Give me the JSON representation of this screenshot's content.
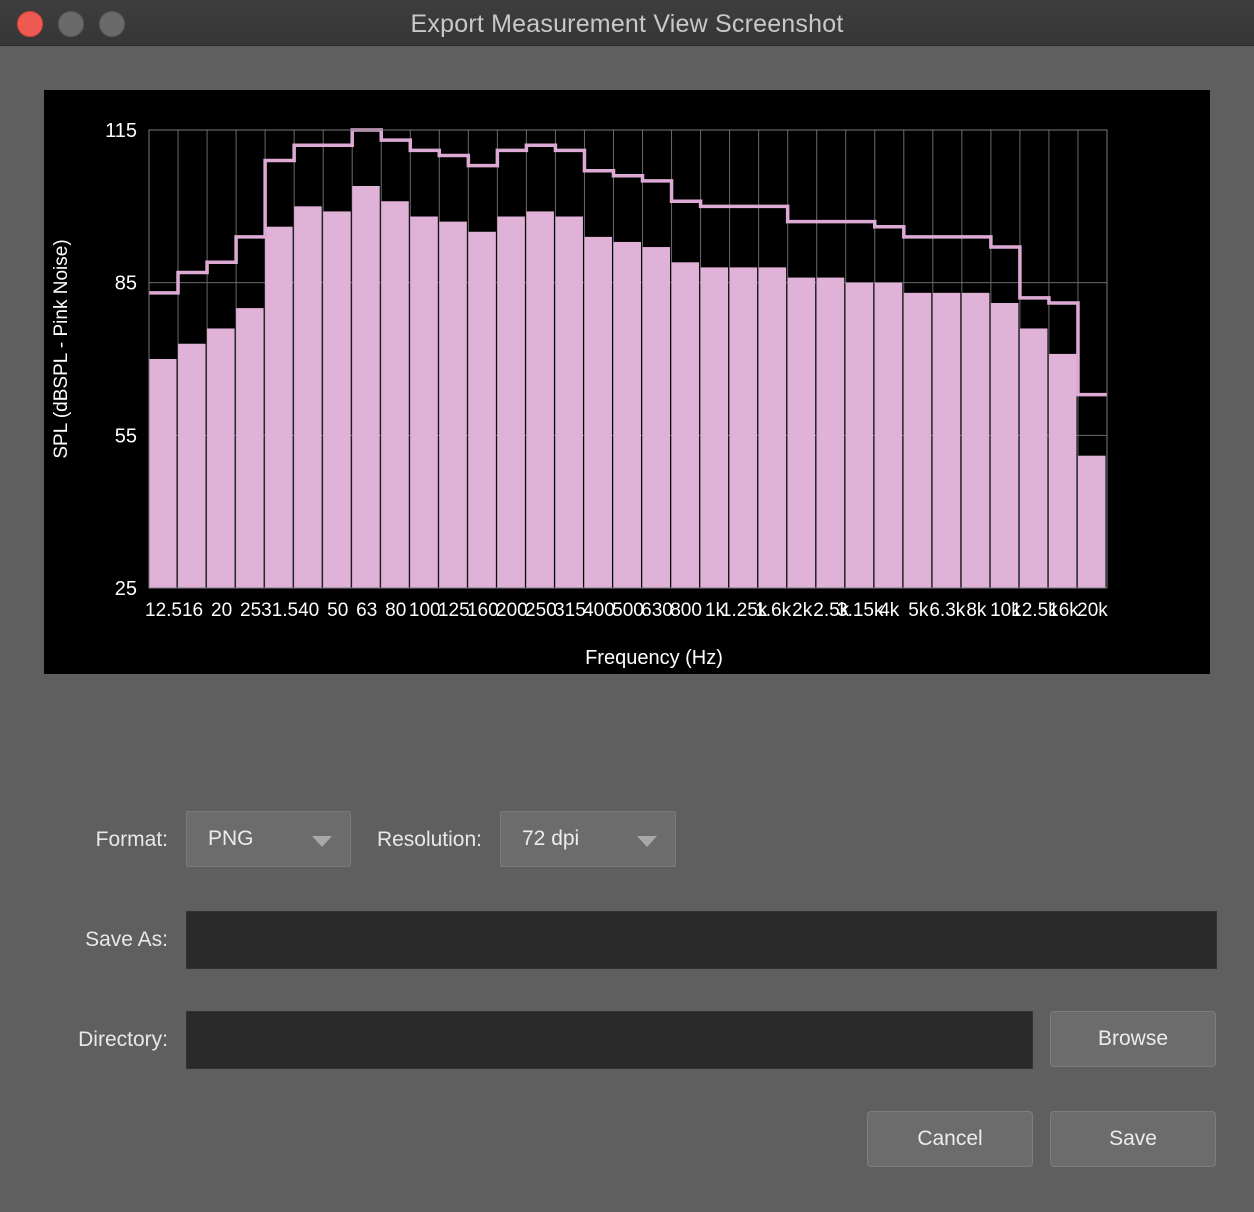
{
  "window": {
    "title": "Export Measurement View Screenshot"
  },
  "chart_data": {
    "type": "bar",
    "xlabel": "Frequency (Hz)",
    "ylabel": "SPL (dBSPL - Pink Noise)",
    "ylim": [
      25,
      115
    ],
    "yticks": [
      25,
      55,
      85,
      115
    ],
    "grid": true,
    "categories": [
      "12.5",
      "16",
      "20",
      "25",
      "31.5",
      "40",
      "50",
      "63",
      "80",
      "100",
      "125",
      "160",
      "200",
      "250",
      "315",
      "400",
      "500",
      "630",
      "800",
      "1k",
      "1.25k",
      "1.6k",
      "2k",
      "2.5k",
      "3.15k",
      "4k",
      "5k",
      "6.3k",
      "8k",
      "10k",
      "12.5k",
      "16k",
      "20k"
    ],
    "series": [
      {
        "kind": "bar",
        "color": "#e0b2d8",
        "values": [
          70,
          73,
          76,
          80,
          96,
          100,
          99,
          104,
          101,
          98,
          97,
          95,
          98,
          99,
          98,
          94,
          93,
          92,
          89,
          88,
          88,
          88,
          86,
          86,
          85,
          85,
          83,
          83,
          83,
          81,
          76,
          71,
          51
        ]
      },
      {
        "kind": "step",
        "color": "#dcaad4",
        "values": [
          83,
          87,
          89,
          94,
          109,
          112,
          112,
          115,
          113,
          111,
          110,
          108,
          111,
          112,
          111,
          107,
          106,
          105,
          101,
          100,
          100,
          100,
          97,
          97,
          97,
          96,
          94,
          94,
          94,
          92,
          82,
          81,
          63
        ]
      }
    ]
  },
  "form": {
    "format_label": "Format:",
    "format_value": "PNG",
    "resolution_label": "Resolution:",
    "resolution_value": "72 dpi",
    "save_as_label": "Save As:",
    "save_as_value": "",
    "directory_label": "Directory:",
    "directory_value": ""
  },
  "buttons": {
    "browse": "Browse",
    "cancel": "Cancel",
    "save": "Save"
  },
  "colors": {
    "close": "#ee5a52",
    "bar": "#e0b2d8",
    "step": "#dcaad4"
  }
}
